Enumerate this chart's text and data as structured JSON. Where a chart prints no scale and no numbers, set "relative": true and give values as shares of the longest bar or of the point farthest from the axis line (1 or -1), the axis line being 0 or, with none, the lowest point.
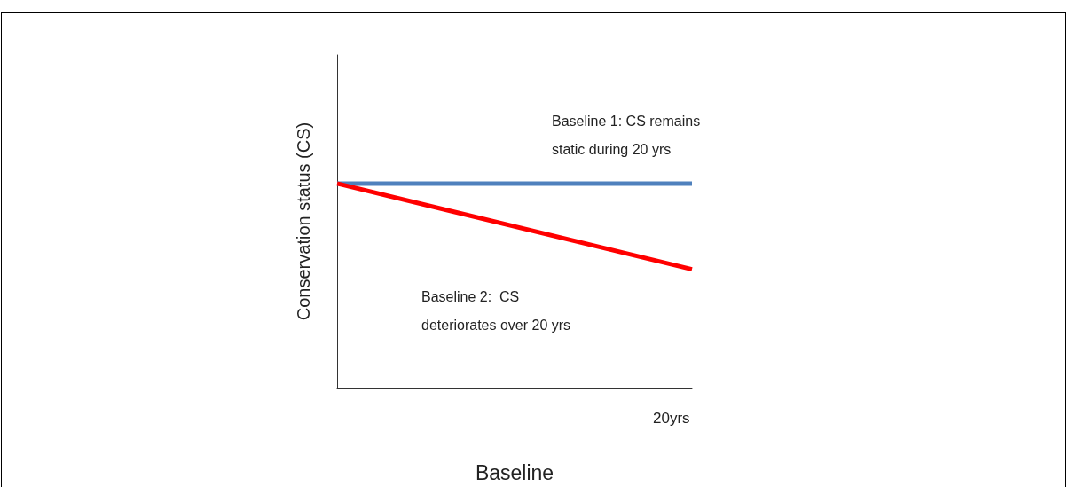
{
  "chart_data": {
    "type": "line",
    "relative": true,
    "xlabel": "Baseline",
    "ylabel": "Conservation status (CS)",
    "categories": [
      null,
      null
    ],
    "series": [
      {
        "color": "#4f81bd",
        "values": [
          1,
          1
        ]
      },
      {
        "color": "#ff0000",
        "values": [
          1,
          0.58
        ]
      }
    ],
    "annotations": [
      "Baseline 1: CS remains static during 20 yrs",
      "Baseline 2:  CS  deteriorates over 20 yrs",
      "20yrs"
    ],
    "grid": false,
    "marker": "none",
    "line_style": "solid"
  }
}
